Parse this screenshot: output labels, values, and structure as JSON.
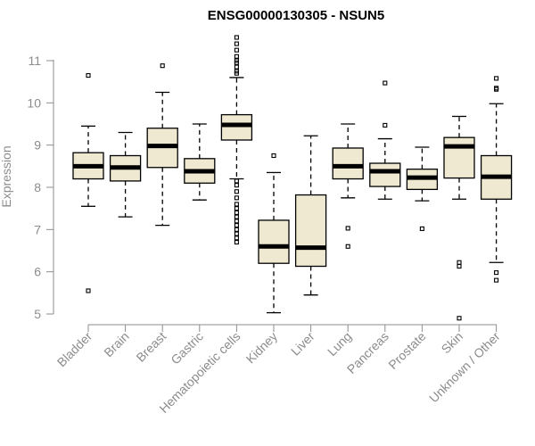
{
  "chart_data": {
    "type": "boxplot",
    "title": "ENSG00000130305 - NSUN5",
    "xlabel": "",
    "ylabel": "Expression",
    "ylim": [
      4.7,
      11.6
    ],
    "yticks": [
      5,
      6,
      7,
      8,
      9,
      10,
      11
    ],
    "grid": false,
    "colors": {
      "box_fill": "#efe9d2",
      "stroke": "#000000",
      "axis": "#8c8c8c"
    },
    "categories": [
      "Bladder",
      "Brain",
      "Breast",
      "Gastric",
      "Hematopoietic cells",
      "Kidney",
      "Liver",
      "Lung",
      "Pancreas",
      "Prostate",
      "Skin",
      "Unknown / Other"
    ],
    "boxes": [
      {
        "q1": 8.2,
        "median": 8.5,
        "q3": 8.82,
        "whisker_low": 7.55,
        "whisker_high": 9.45,
        "outliers": [
          10.65,
          5.55
        ]
      },
      {
        "q1": 8.15,
        "median": 8.47,
        "q3": 8.75,
        "whisker_low": 7.3,
        "whisker_high": 9.3,
        "outliers": []
      },
      {
        "q1": 8.47,
        "median": 8.98,
        "q3": 9.4,
        "whisker_low": 7.1,
        "whisker_high": 10.25,
        "outliers": [
          10.88
        ]
      },
      {
        "q1": 8.1,
        "median": 8.38,
        "q3": 8.68,
        "whisker_low": 7.7,
        "whisker_high": 9.5,
        "outliers": []
      },
      {
        "q1": 9.12,
        "median": 9.48,
        "q3": 9.72,
        "whisker_low": 8.2,
        "whisker_high": 10.6,
        "outliers": [
          11.55,
          11.4,
          11.25,
          11.1,
          11.0,
          10.95,
          10.85,
          10.75,
          10.7,
          8.15,
          8.05,
          7.9,
          7.75,
          7.6,
          7.5,
          7.4,
          7.3,
          7.2,
          7.1,
          7.0,
          6.9,
          6.8,
          6.7
        ]
      },
      {
        "q1": 6.2,
        "median": 6.6,
        "q3": 7.22,
        "whisker_low": 5.03,
        "whisker_high": 8.35,
        "outliers": [
          8.75
        ]
      },
      {
        "q1": 6.13,
        "median": 6.57,
        "q3": 7.82,
        "whisker_low": 5.45,
        "whisker_high": 9.22,
        "outliers": []
      },
      {
        "q1": 8.2,
        "median": 8.5,
        "q3": 8.93,
        "whisker_low": 7.75,
        "whisker_high": 9.5,
        "outliers": [
          7.03,
          6.6
        ]
      },
      {
        "q1": 8.02,
        "median": 8.38,
        "q3": 8.57,
        "whisker_low": 7.72,
        "whisker_high": 9.15,
        "outliers": [
          10.47,
          9.47
        ]
      },
      {
        "q1": 7.95,
        "median": 8.23,
        "q3": 8.43,
        "whisker_low": 7.68,
        "whisker_high": 8.95,
        "outliers": [
          7.02
        ]
      },
      {
        "q1": 8.22,
        "median": 8.97,
        "q3": 9.18,
        "whisker_low": 7.72,
        "whisker_high": 9.68,
        "outliers": [
          6.22,
          6.13,
          4.9
        ]
      },
      {
        "q1": 7.72,
        "median": 8.25,
        "q3": 8.75,
        "whisker_low": 6.22,
        "whisker_high": 9.98,
        "outliers": [
          10.58,
          10.35,
          10.32,
          5.98,
          5.8
        ]
      }
    ]
  }
}
